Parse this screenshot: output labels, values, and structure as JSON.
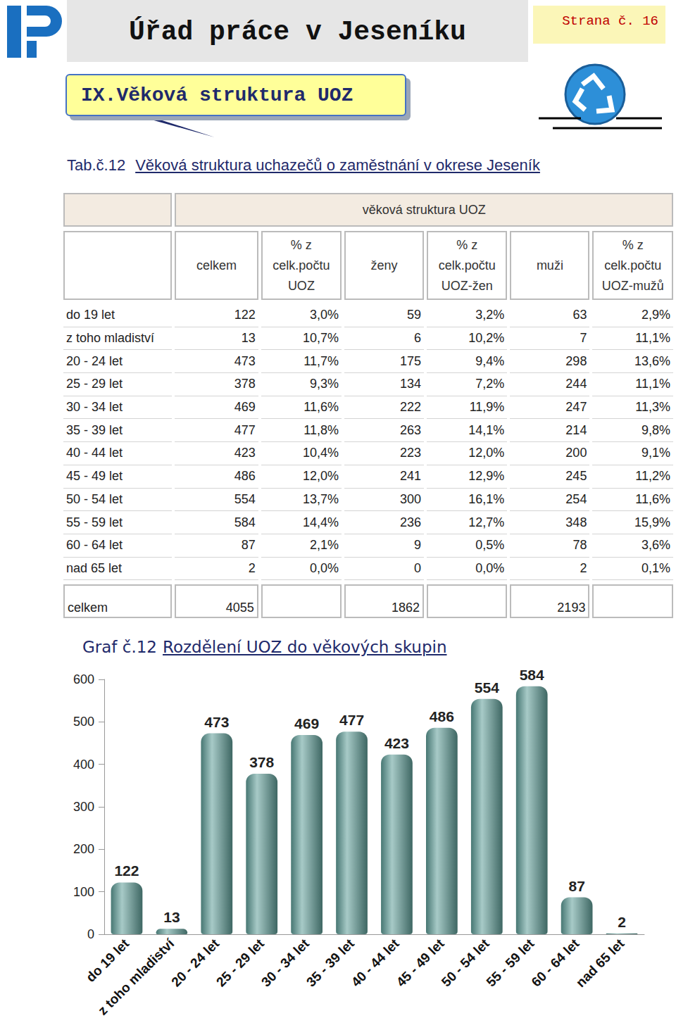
{
  "header": {
    "title": "Úřad práce v Jeseníku",
    "page": "Strana č. 16"
  },
  "section": "IX.Věková struktura UOZ",
  "table": {
    "caption_number": "Tab.č.12",
    "caption": "Věková struktura uchazečů o zaměstnání v okrese Jeseník",
    "group_header": "věková struktura UOZ",
    "columns": [
      "celkem",
      [
        "% z",
        "celk.počtu",
        "UOZ"
      ],
      "ženy",
      [
        "% z",
        "celk.počtu",
        "UOZ-žen"
      ],
      "muži",
      [
        "% z",
        "celk.počtu",
        "UOZ-mužů"
      ]
    ],
    "rows": [
      [
        "do 19 let",
        "122",
        "3,0%",
        "59",
        "3,2%",
        "63",
        "2,9%"
      ],
      [
        "z toho mladiství",
        "13",
        "10,7%",
        "6",
        "10,2%",
        "7",
        "11,1%"
      ],
      [
        "20 - 24 let",
        "473",
        "11,7%",
        "175",
        "9,4%",
        "298",
        "13,6%"
      ],
      [
        "25 - 29 let",
        "378",
        "9,3%",
        "134",
        "7,2%",
        "244",
        "11,1%"
      ],
      [
        "30 - 34 let",
        "469",
        "11,6%",
        "222",
        "11,9%",
        "247",
        "11,3%"
      ],
      [
        "35 - 39 let",
        "477",
        "11,8%",
        "263",
        "14,1%",
        "214",
        "9,8%"
      ],
      [
        "40 - 44 let",
        "423",
        "10,4%",
        "223",
        "12,0%",
        "200",
        "9,1%"
      ],
      [
        "45 - 49 let",
        "486",
        "12,0%",
        "241",
        "12,9%",
        "245",
        "11,2%"
      ],
      [
        "50 - 54 let",
        "554",
        "13,7%",
        "300",
        "16,1%",
        "254",
        "11,6%"
      ],
      [
        "55 - 59 let",
        "584",
        "14,4%",
        "236",
        "12,7%",
        "348",
        "15,9%"
      ],
      [
        "60 - 64 let",
        "87",
        "2,1%",
        "9",
        "0,5%",
        "78",
        "3,6%"
      ],
      [
        "nad 65 let",
        "2",
        "0,0%",
        "0",
        "0,0%",
        "2",
        "0,1%"
      ]
    ],
    "total": [
      "celkem",
      "4055",
      "1862",
      "2193"
    ]
  },
  "chart_data": {
    "type": "bar",
    "title_number": "Graf č.12",
    "title": "Rozdělení UOZ do věkových skupin",
    "categories": [
      "do 19 let",
      "z toho mladiství",
      "20 - 24 let",
      "25 - 29 let",
      "30 - 34 let",
      "35 - 39 let",
      "40 - 44 let",
      "45 - 49 let",
      "50 - 54 let",
      "55 - 59 let",
      "60 - 64 let",
      "nad 65 let"
    ],
    "values": [
      122,
      13,
      473,
      378,
      469,
      477,
      423,
      486,
      554,
      584,
      87,
      2
    ],
    "color": "#5f9f99",
    "ylim": [
      0,
      600
    ],
    "yticks": [
      0,
      100,
      200,
      300,
      400,
      500,
      600
    ],
    "grid": false,
    "data_labels": true
  }
}
